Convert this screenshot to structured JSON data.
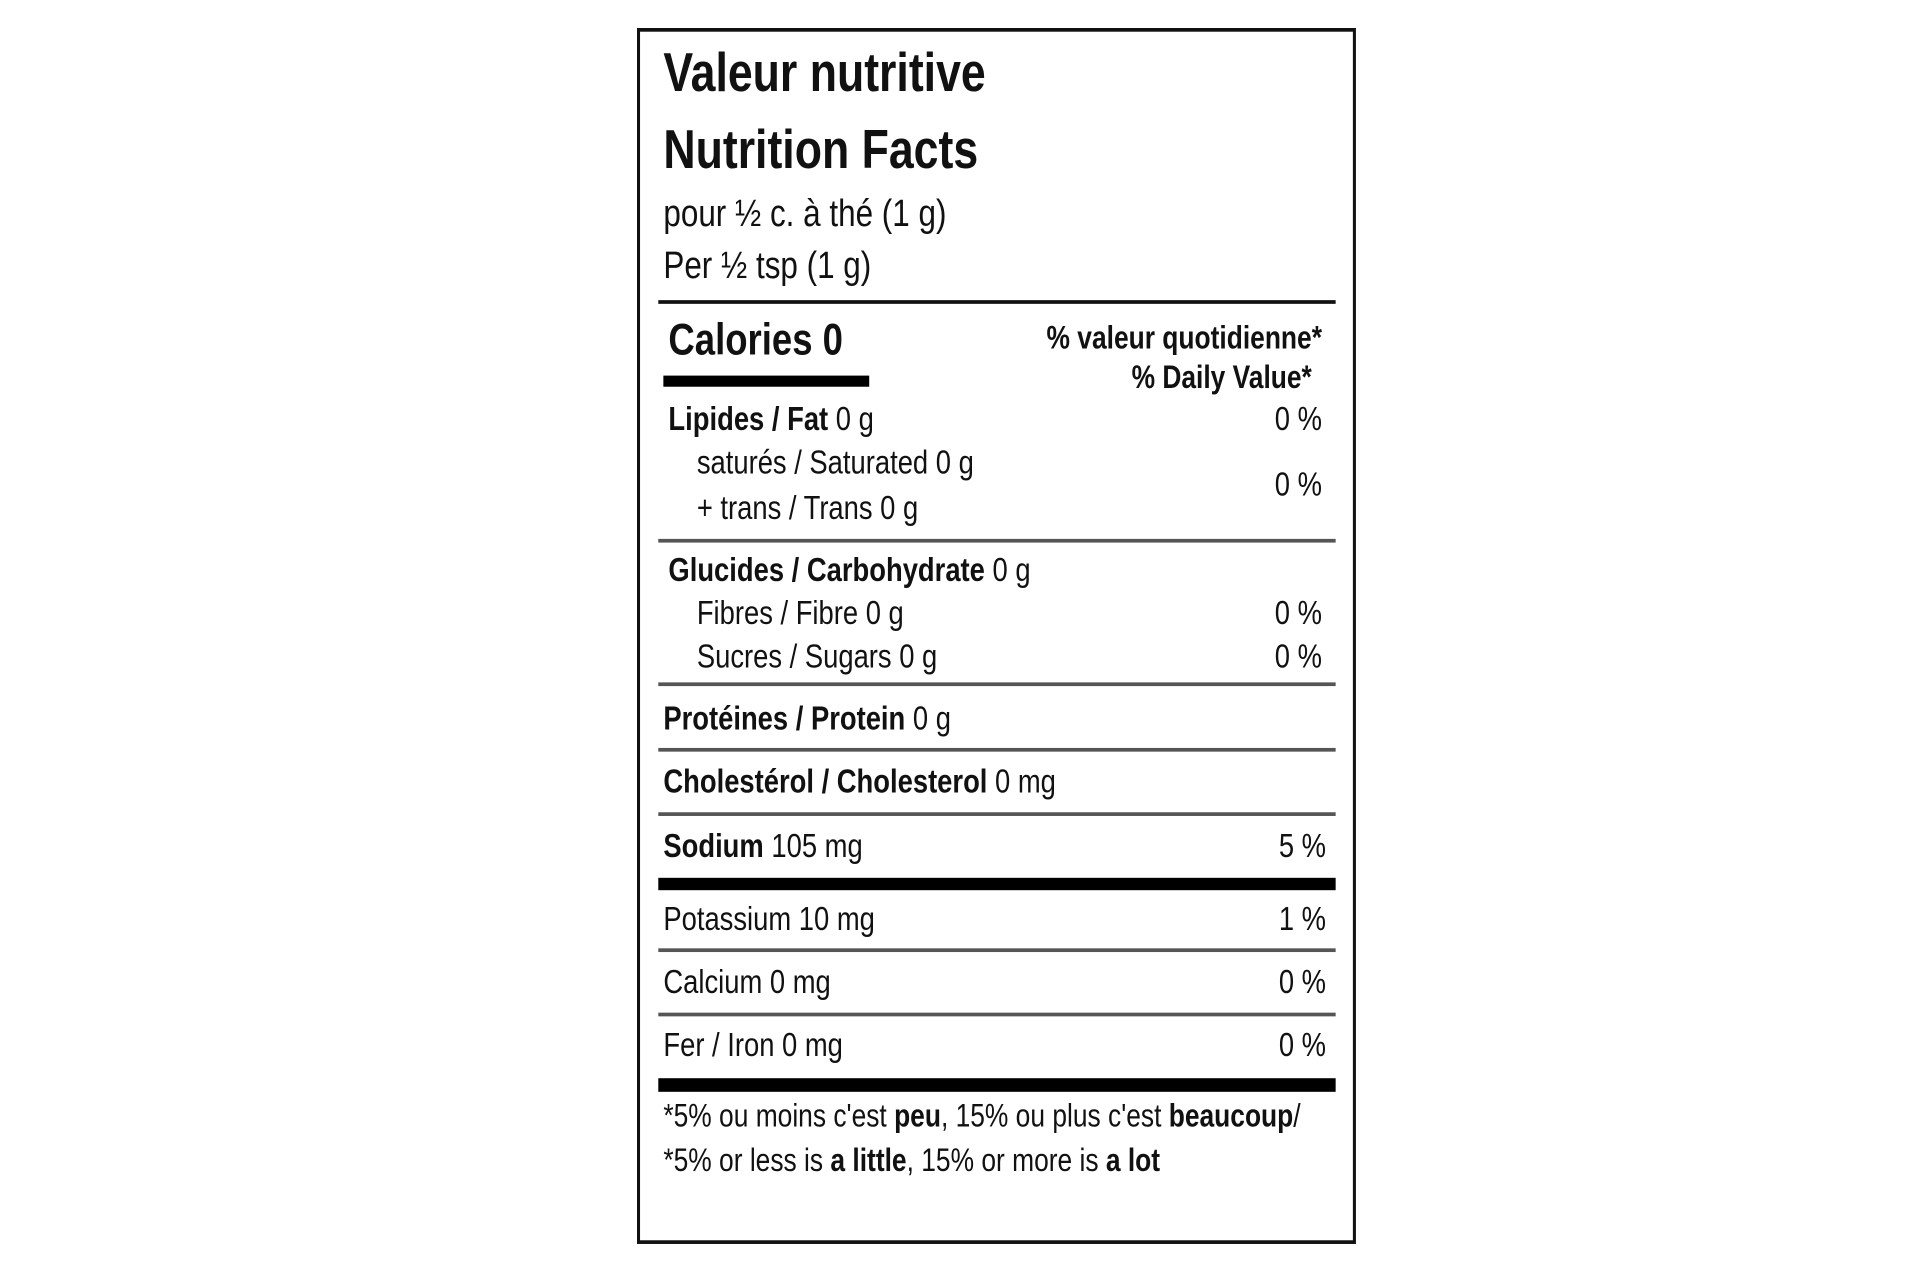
{
  "label": {
    "title_fr": "Valeur nutritive",
    "title_en": "Nutrition Facts",
    "serving_fr": "pour ½ c. à thé (1 g)",
    "serving_en": "Per ½ tsp (1 g)",
    "calories": "Calories 0",
    "dv_header_fr": "% valeur quotidienne*",
    "dv_header_en": "% Daily Value*",
    "fat": {
      "name": "Lipides / Fat",
      "amount": "0 g",
      "dv": "0 %"
    },
    "saturated": "saturés / Saturated 0 g",
    "trans": "+ trans / Trans 0 g",
    "saturated_trans_dv": "0 %",
    "carbohydrate": {
      "name": "Glucides / Carbohydrate",
      "amount": "0 g"
    },
    "fibre": {
      "text": "Fibres / Fibre 0 g",
      "dv": "0 %"
    },
    "sugars": {
      "text": "Sucres / Sugars 0 g",
      "dv": "0 %"
    },
    "protein": {
      "name": "Protéines / Protein",
      "amount": "0 g"
    },
    "cholesterol": {
      "name": "Cholestérol / Cholesterol",
      "amount": "0 mg"
    },
    "sodium": {
      "name": "Sodium",
      "amount": "105 mg",
      "dv": "5 %"
    },
    "potassium": {
      "text": "Potassium 10 mg",
      "dv": "1 %"
    },
    "calcium": {
      "text": "Calcium 0 mg",
      "dv": "0 %"
    },
    "iron": {
      "text": "Fer / Iron 0 mg",
      "dv": "0 %"
    },
    "footnote": [
      "*5% ou moins c'est ",
      "peu",
      ", 15% ou plus c'est ",
      "beaucoup",
      "/ *5% or less is ",
      "a little",
      ", 15% or more is ",
      "a lot"
    ]
  }
}
